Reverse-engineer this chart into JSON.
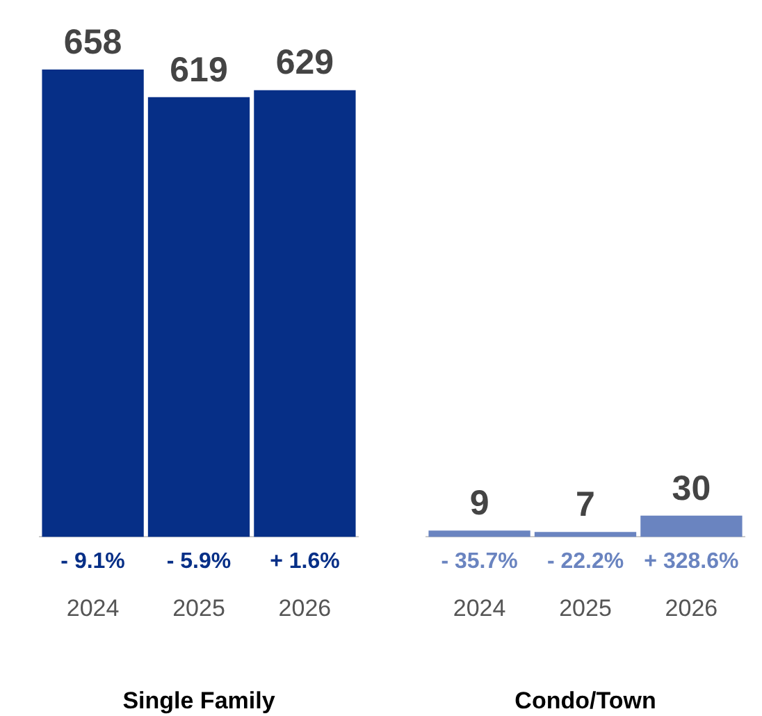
{
  "chart_data": [
    {
      "type": "bar",
      "xlabel": "Single Family",
      "categories": [
        "2024",
        "2025",
        "2026"
      ],
      "values": [
        658,
        619,
        629
      ],
      "colors": [
        "#062f87",
        "#062f87",
        "#062f87"
      ],
      "data_labels": true,
      "tick_labels": "x",
      "grid": false,
      "legend": false,
      "annotations": [
        {
          "text": "- 9.1%",
          "x": "2024",
          "y": 0
        },
        {
          "text": "- 5.9%",
          "x": "2025",
          "y": 0
        },
        {
          "text": "+ 1.6%",
          "x": "2026",
          "y": 0
        }
      ]
    },
    {
      "type": "bar",
      "xlabel": "Condo/Town",
      "categories": [
        "2024",
        "2025",
        "2026"
      ],
      "values": [
        9,
        7,
        30
      ],
      "colors": [
        "#6a84c0",
        "#6a84c0",
        "#6a84c0"
      ],
      "data_labels": true,
      "tick_labels": "x",
      "grid": false,
      "legend": false,
      "annotations": [
        {
          "text": "- 35.7%",
          "x": "2024",
          "y": 0
        },
        {
          "text": "- 22.2%",
          "x": "2025",
          "y": 0
        },
        {
          "text": "+ 328.6%",
          "x": "2026",
          "y": 0
        }
      ]
    }
  ]
}
